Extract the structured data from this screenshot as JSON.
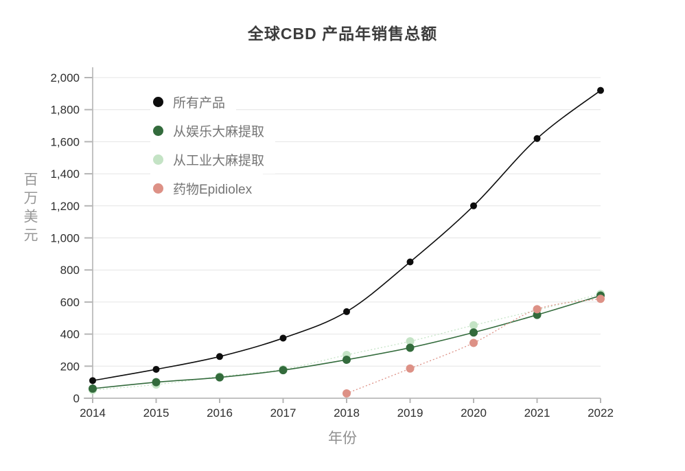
{
  "chart_data": {
    "type": "line",
    "title": "全球CBD 产品年销售总额",
    "xlabel": "年份",
    "ylabel": "百万美元",
    "x": [
      2014,
      2015,
      2016,
      2017,
      2018,
      2019,
      2020,
      2021,
      2022
    ],
    "ylim": [
      0,
      2000
    ],
    "y_tick_values": [
      0,
      200,
      400,
      600,
      800,
      1000,
      1200,
      1400,
      1600,
      1800,
      2000
    ],
    "y_tick_labels": [
      "0",
      "200",
      "400",
      "600",
      "800",
      "1,000",
      "1,200",
      "1,400",
      "1,600",
      "1,800",
      "2,000"
    ],
    "grid": "horizontal",
    "legend_position": "inside-top-left",
    "draw_order": [
      2,
      1,
      3,
      0
    ],
    "series": [
      {
        "name": "所有产品",
        "color": "#0d0d0d",
        "line": "solid",
        "values": [
          110,
          180,
          260,
          375,
          540,
          850,
          1200,
          1620,
          1920
        ]
      },
      {
        "name": "从娱乐大麻提取",
        "color": "#336b3c",
        "line": "solid",
        "values": [
          60,
          100,
          130,
          175,
          240,
          315,
          410,
          520,
          640
        ]
      },
      {
        "name": "从工业大麻提取",
        "color": "#c4e3c5",
        "line": "dashed",
        "values": [
          52,
          85,
          135,
          180,
          270,
          355,
          455,
          550,
          650
        ]
      },
      {
        "name": "药物Epidiolex",
        "color": "#dd9186",
        "line": "dashed",
        "values": [
          null,
          null,
          null,
          null,
          30,
          185,
          345,
          555,
          620
        ]
      }
    ],
    "colors": {
      "grid": "#e4e4e4",
      "axis": "#c2c2c2",
      "tick": "#b5b5b5",
      "tick_text": "#2e2e2e"
    }
  }
}
